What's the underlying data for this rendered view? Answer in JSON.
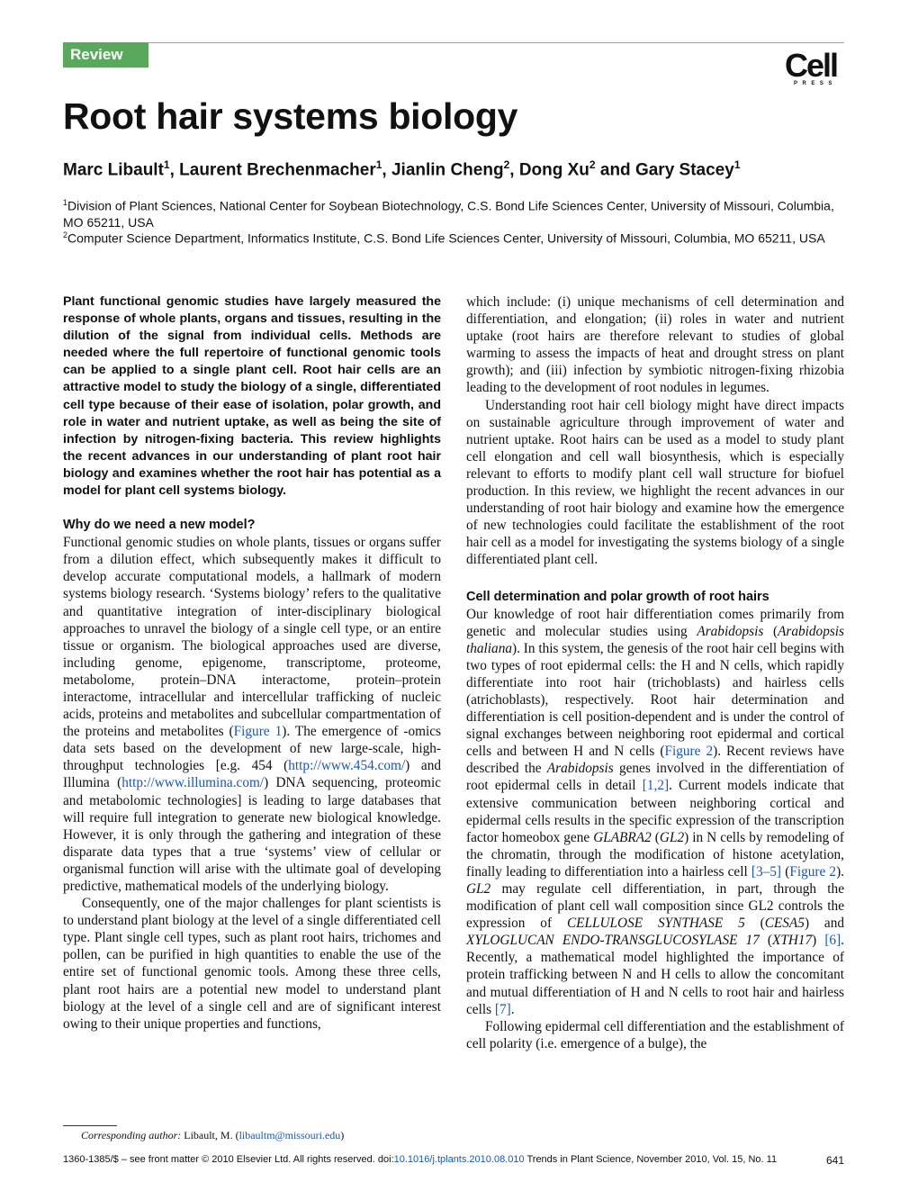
{
  "header": {
    "section_tag": "Review",
    "logo_text": "Cell",
    "logo_subtext": "PRESS"
  },
  "title": "Root hair systems biology",
  "authors": [
    {
      "name": "Marc Libault",
      "sup": "1",
      "sep": ", "
    },
    {
      "name": "Laurent Brechenmacher",
      "sup": "1",
      "sep": ", "
    },
    {
      "name": "Jianlin Cheng",
      "sup": "2",
      "sep": ", "
    },
    {
      "name": "Dong Xu",
      "sup": "2",
      "sep": " and "
    },
    {
      "name": "Gary Stacey",
      "sup": "1",
      "sep": ""
    }
  ],
  "affiliations": [
    {
      "sup": "1",
      "text": "Division of Plant Sciences, National Center for Soybean Biotechnology, C.S. Bond Life Sciences Center, University of Missouri, Columbia, MO 65211, USA"
    },
    {
      "sup": "2",
      "text": "Computer Science Department, Informatics Institute, C.S. Bond Life Sciences Center, University of Missouri, Columbia, MO 65211, USA"
    }
  ],
  "abstract": "Plant functional genomic studies have largely measured the response of whole plants, organs and tissues, resulting in the dilution of the signal from individual cells. Methods are needed where the full repertoire of functional genomic tools can be applied to a single plant cell. Root hair cells are an attractive model to study the biology of a single, differentiated cell type because of their ease of isolation, polar growth, and role in water and nutrient uptake, as well as being the site of infection by nitrogen-fixing bacteria. This review highlights the recent advances in our understanding of plant root hair biology and examines whether the root hair has potential as a model for plant cell systems biology.",
  "section1": {
    "heading": "Why do we need a new model?",
    "p1_a": "Functional genomic studies on whole plants, tissues or organs suffer from a dilution effect, which subsequently makes it difficult to develop accurate computational models, a hallmark of modern systems biology research. ‘Systems biology’ refers to the qualitative and quantitative integration of inter-disciplinary biological approaches to unravel the biology of a single cell type, or an entire tissue or organism. The biological approaches used are diverse, including genome, epigenome, transcriptome, proteome, metabolome, protein–DNA interactome, protein–protein interactome, intracellular and intercellular trafficking of nucleic acids, proteins and metabolites and subcellular compartmentation of the proteins and metabolites (",
    "p1_fig": "Figure 1",
    "p1_b": "). The emergence of -omics data sets based on the development of new large-scale, high-throughput technologies [e.g. 454 (",
    "p1_url1": "http://www.454.com/",
    "p1_c": ") and Illumina (",
    "p1_url2": "http://www.illumina.com/",
    "p1_d": ") DNA sequencing, proteomic and metabolomic technologies] is leading to large databases that will require full integration to generate new biological knowledge. However, it is only through the gathering and integration of these disparate data types that a true ‘systems’ view of cellular or organismal function will arise with the ultimate goal of developing predictive, mathematical models of the underlying biology.",
    "p2": "Consequently, one of the major challenges for plant scientists is to understand plant biology at the level of a single differentiated cell type. Plant single cell types, such as plant root hairs, trichomes and pollen, can be purified in high quantities to enable the use of the entire set of functional genomic tools. Among these three cells, plant root hairs are a potential new model to understand plant biology at the level of a single cell and are of significant interest owing to their unique properties and functions,"
  },
  "right": {
    "p1": "which include: (i) unique mechanisms of cell determination and differentiation, and elongation; (ii) roles in water and nutrient uptake (root hairs are therefore relevant to studies of global warming to assess the impacts of heat and drought stress on plant growth); and (iii) infection by symbiotic nitrogen-fixing rhizobia leading to the development of root nodules in legumes.",
    "p2": "Understanding root hair cell biology might have direct impacts on sustainable agriculture through improvement of water and nutrient uptake. Root hairs can be used as a model to study plant cell elongation and cell wall biosynthesis, which is especially relevant to efforts to modify plant cell wall structure for biofuel production. In this review, we highlight the recent advances in our understanding of root hair biology and examine how the emergence of new technologies could facilitate the establishment of the root hair cell as a model for investigating the systems biology of a single differentiated plant cell.",
    "heading2": "Cell determination and polar growth of root hairs",
    "s2_a": "Our knowledge of root hair differentiation comes primarily from genetic and molecular studies using ",
    "s2_arab": "Arabidopsis",
    "s2_b": " (",
    "s2_arabt": "Arabidopsis thaliana",
    "s2_c": "). In this system, the genesis of the root hair cell begins with two types of root epidermal cells: the H and N cells, which rapidly differentiate into root hair (trichoblasts) and hairless cells (atrichoblasts), respectively. Root hair determination and differentiation is cell position-dependent and is under the control of signal exchanges between neighboring root epidermal and cortical cells and between H and N cells (",
    "s2_fig2": "Figure 2",
    "s2_d": "). Recent reviews have described the ",
    "s2_arab2": "Arabidopsis",
    "s2_e": " genes involved in the differentiation of root epidermal cells in detail ",
    "s2_ref12": "[1,2]",
    "s2_f": ". Current models indicate that extensive communication between neighboring cortical and epidermal cells results in the specific expression of the transcription factor homeobox gene ",
    "s2_gl": "GLABRA2",
    "s2_g": " (",
    "s2_gl2": "GL2",
    "s2_h": ") in N cells by remodeling of the chromatin, through the modification of histone acetylation, finally leading to differentiation into a hairless cell ",
    "s2_ref35": "[3–5]",
    "s2_i": " (",
    "s2_fig2b": "Figure 2",
    "s2_j": "). ",
    "s2_gl2b": "GL2",
    "s2_k": " may regulate cell differentiation, in part, through the modification of plant cell wall composition since GL2 controls the expression of ",
    "s2_cesa": "CELLULOSE SYNTHASE 5",
    "s2_l": " (",
    "s2_cesa5": "CESA5",
    "s2_m": ") and ",
    "s2_xth": "XYLOGLUCAN ENDO-TRANSGLUCOSYLASE 17",
    "s2_n": " (",
    "s2_xth17": "XTH17",
    "s2_o": ") ",
    "s2_ref6": "[6]",
    "s2_p": ". Recently, a mathematical model highlighted the importance of protein trafficking between N and H cells to allow the concomitant and mutual differentiation of H and N cells to root hair and hairless cells ",
    "s2_ref7": "[7]",
    "s2_q": ".",
    "p4": "Following epidermal cell differentiation and the establishment of cell polarity (i.e. emergence of a bulge), the"
  },
  "footnote": {
    "label": "Corresponding author:",
    "name": " Libault, M. (",
    "email": "libaultm@missouri.edu",
    "close": ")"
  },
  "footer": {
    "text_a": "1360-1385/$ – see front matter © 2010 Elsevier Ltd. All rights reserved. doi:",
    "doi": "10.1016/j.tplants.2010.08.010",
    "text_b": "  Trends in Plant Science, November 2010, Vol. 15, No. 11",
    "page": "641"
  }
}
